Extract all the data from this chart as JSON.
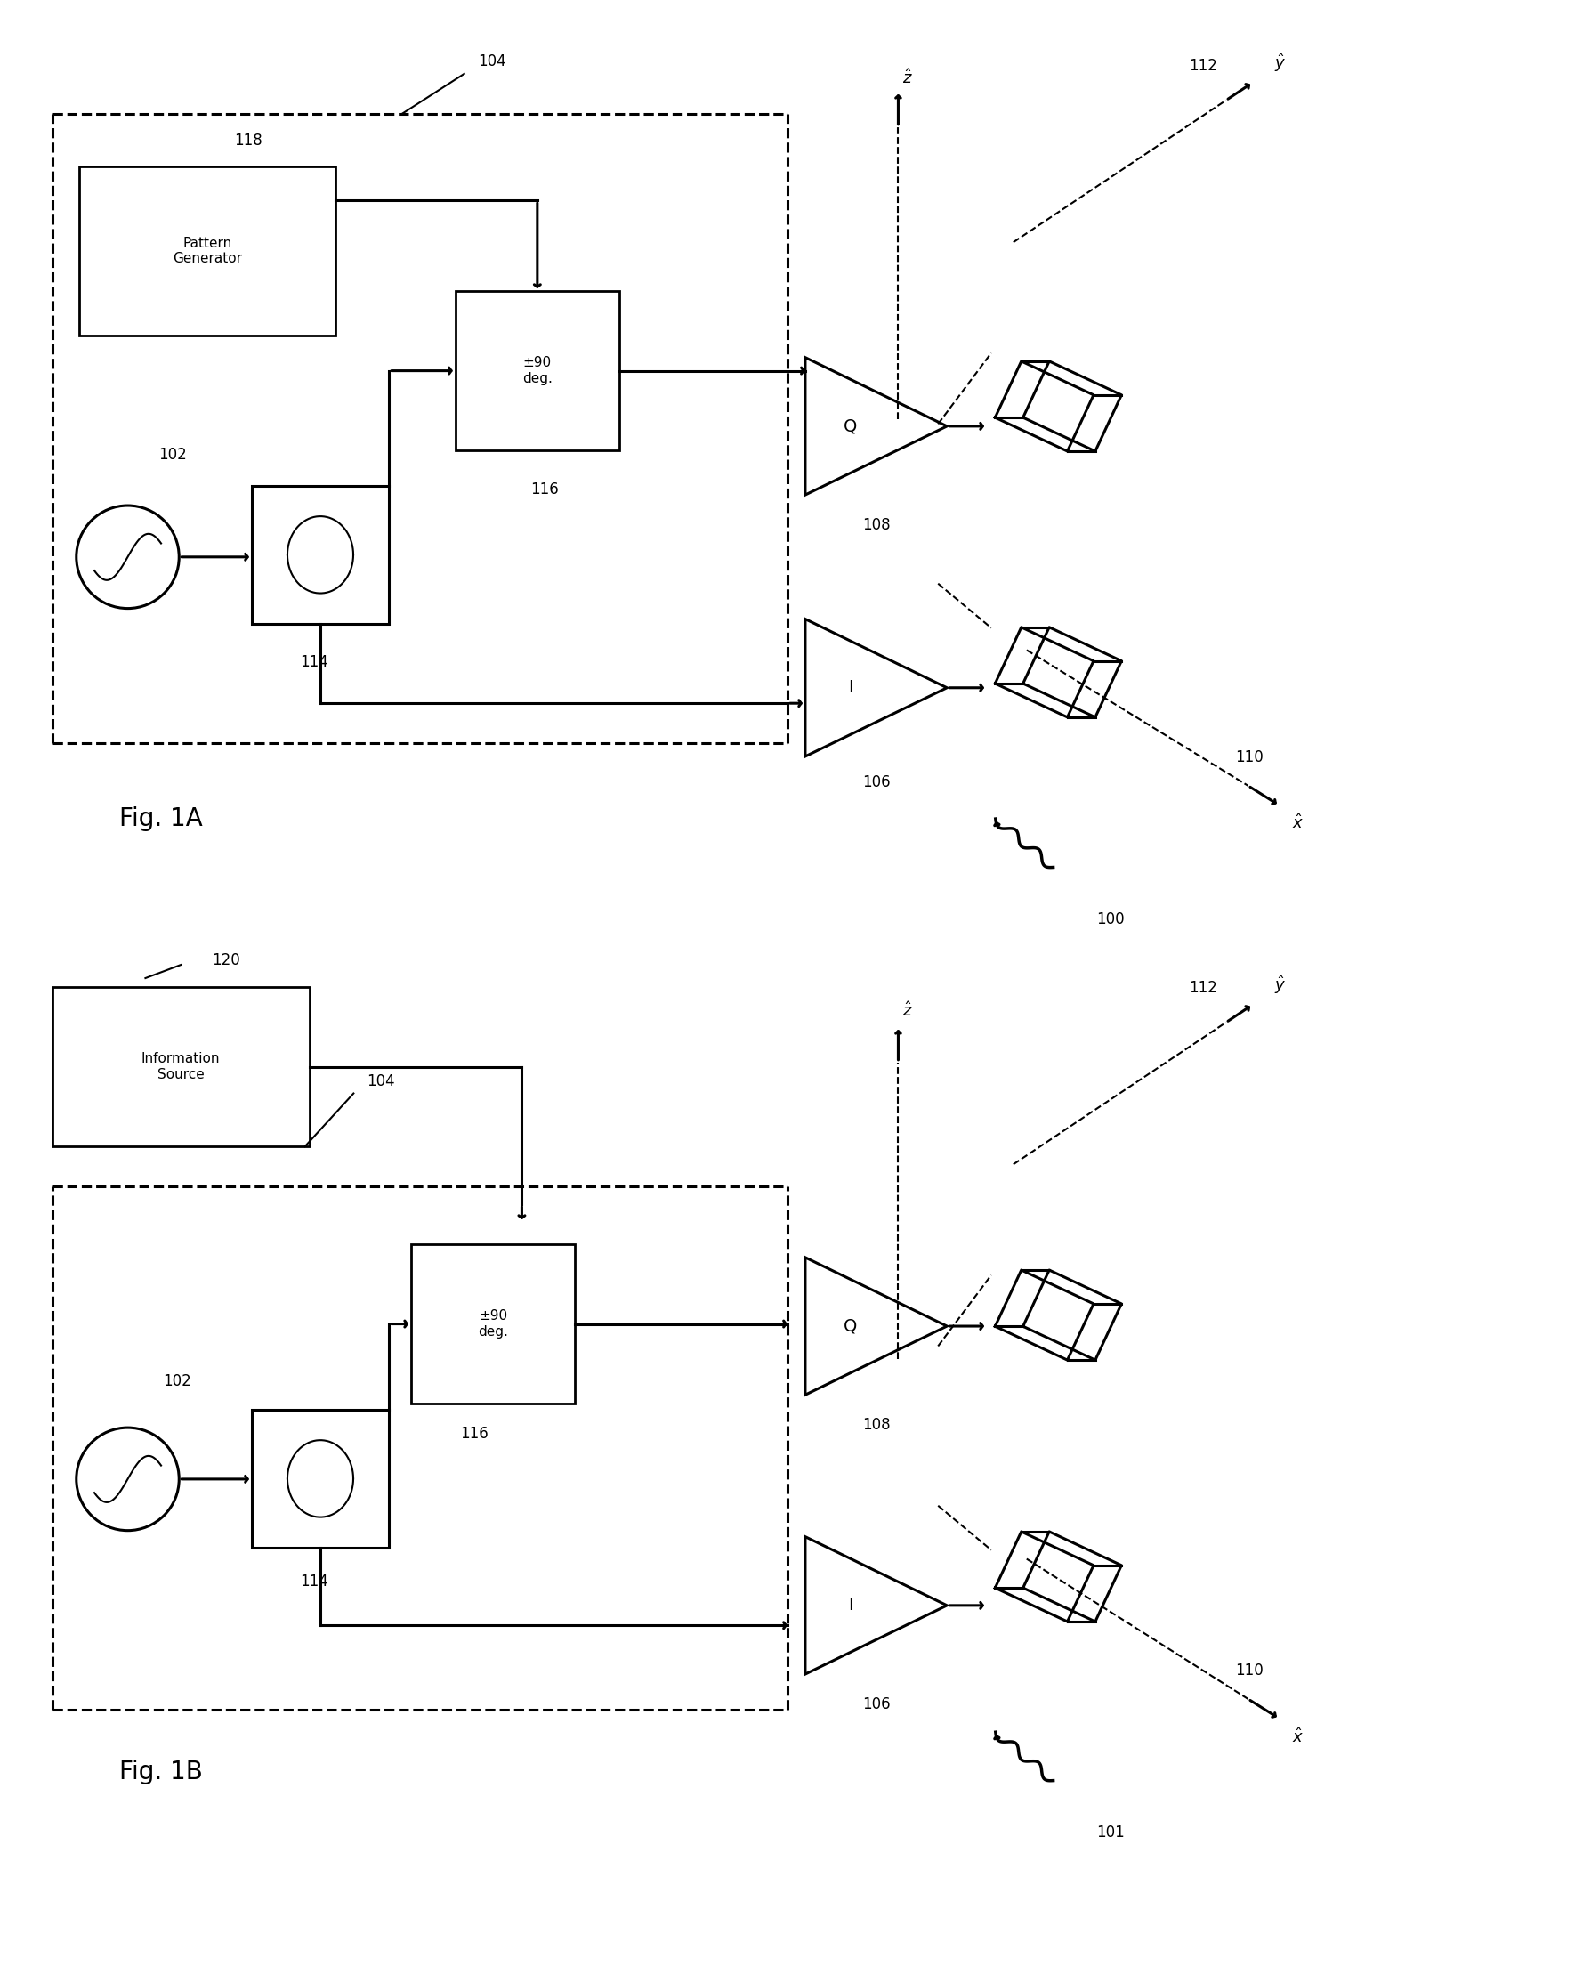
{
  "fig_width": 17.79,
  "fig_height": 22.09,
  "bg_color": "#ffffff",
  "fig1A_label": "Fig. 1A",
  "fig1B_label": "Fig. 1B",
  "label_100": "100",
  "label_101": "101",
  "label_102": "102",
  "label_104": "104",
  "label_106": "106",
  "label_108": "108",
  "label_110": "110",
  "label_112": "112",
  "label_114": "114",
  "label_116": "116",
  "label_118": "118",
  "label_120": "120",
  "text_pattern_gen": "Pattern\nGenerator",
  "text_info_src": "Information\nSource",
  "text_deg": "±90\ndeg.",
  "text_Q": "Q",
  "text_I": "I"
}
